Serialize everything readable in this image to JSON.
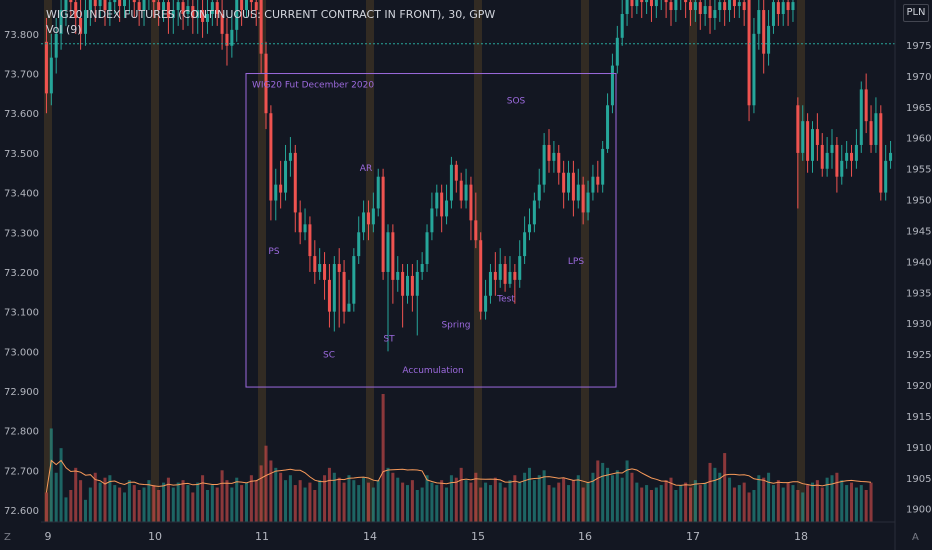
{
  "header": {
    "title": "WIG20 INDEX FUTURES (CONTINUOUS: CURRENT CONTRACT IN FRONT), 30, GPW",
    "volume_label": "Vol (9)"
  },
  "currency": "PLN",
  "corner_left": "Z",
  "corner_right": "A",
  "colors": {
    "background": "#131722",
    "up": "#26a69a",
    "down": "#ef5350",
    "annotation": "#9c6ade",
    "ma_line": "#f89a5a",
    "session_band": "#3d3324",
    "dotted_line": "#26a69a"
  },
  "chart_data": {
    "type": "candlestick",
    "left_axis": {
      "label": "",
      "ticks": [
        "73.800",
        "73.700",
        "73.600",
        "73.500",
        "73.400",
        "73.300",
        "73.200",
        "73.100",
        "73.000",
        "72.900",
        "72.800",
        "72.700",
        "72.600"
      ],
      "range": [
        72.58,
        73.85
      ]
    },
    "right_axis": {
      "label": "",
      "ticks": [
        "1975",
        "1970",
        "1965",
        "1960",
        "1955",
        "1950",
        "1945",
        "1940",
        "1935",
        "1930",
        "1925",
        "1920",
        "1915",
        "1910",
        "1905",
        "1900"
      ],
      "range": [
        1898.5,
        1980
      ]
    },
    "x_ticks": [
      "9",
      "10",
      "11",
      "14",
      "15",
      "16",
      "17",
      "18"
    ],
    "box": {
      "title": "WIG20 Fut December 2020",
      "label": "Accumulation",
      "left_axis_range": [
        72.91,
        73.7
      ]
    },
    "annotations": [
      {
        "text": "PS",
        "price": 73.245
      },
      {
        "text": "SC",
        "price": 72.985
      },
      {
        "text": "AR",
        "price": 73.455
      },
      {
        "text": "ST",
        "price": 73.025
      },
      {
        "text": "Spring",
        "price": 73.06
      },
      {
        "text": "Test",
        "price": 73.125
      },
      {
        "text": "SOS",
        "price": 73.625
      },
      {
        "text": "LPS",
        "price": 73.22
      }
    ],
    "dotted_level": 73.775,
    "candles": [
      [
        73.78,
        73.65,
        73.84,
        73.6
      ],
      [
        73.65,
        73.74,
        73.8,
        73.62
      ],
      [
        73.74,
        73.8,
        73.84,
        73.7
      ],
      [
        73.8,
        73.86,
        73.9,
        73.76
      ],
      [
        73.86,
        73.9,
        73.93,
        73.82
      ],
      [
        73.9,
        73.88,
        73.95,
        73.84
      ],
      [
        73.88,
        73.84,
        73.92,
        73.8
      ],
      [
        73.84,
        73.8,
        73.89,
        73.76
      ],
      [
        73.8,
        73.86,
        73.9,
        73.77
      ],
      [
        73.86,
        73.9,
        73.94,
        73.82
      ],
      [
        73.9,
        73.87,
        73.94,
        73.83
      ],
      [
        73.87,
        73.89,
        73.93,
        73.84
      ],
      [
        73.89,
        73.86,
        73.93,
        73.82
      ],
      [
        73.86,
        73.88,
        73.92,
        73.82
      ],
      [
        73.88,
        73.9,
        73.94,
        73.85
      ],
      [
        73.9,
        73.87,
        73.94,
        73.83
      ],
      [
        73.87,
        73.89,
        73.92,
        73.84
      ],
      [
        73.89,
        73.91,
        73.95,
        73.85
      ],
      [
        73.91,
        73.88,
        73.95,
        73.84
      ],
      [
        73.88,
        73.86,
        73.92,
        73.82
      ],
      [
        73.86,
        73.89,
        73.93,
        73.82
      ],
      [
        73.89,
        73.91,
        73.95,
        73.86
      ],
      [
        73.91,
        73.88,
        73.94,
        73.84
      ],
      [
        73.88,
        73.86,
        73.92,
        73.82
      ],
      [
        73.86,
        73.88,
        73.92,
        73.83
      ],
      [
        73.88,
        73.84,
        73.92,
        73.8
      ],
      [
        73.84,
        73.86,
        73.9,
        73.8
      ],
      [
        73.86,
        73.88,
        73.92,
        73.82
      ],
      [
        73.88,
        73.85,
        73.91,
        73.81
      ],
      [
        73.85,
        73.87,
        73.9,
        73.82
      ],
      [
        73.87,
        73.84,
        73.91,
        73.8
      ],
      [
        73.84,
        73.86,
        73.89,
        73.8
      ],
      [
        73.86,
        73.83,
        73.9,
        73.79
      ],
      [
        73.83,
        73.85,
        73.89,
        73.8
      ],
      [
        73.85,
        73.88,
        73.91,
        73.82
      ],
      [
        73.88,
        73.85,
        73.92,
        73.82
      ],
      [
        73.85,
        73.8,
        73.89,
        73.76
      ],
      [
        73.8,
        73.77,
        73.84,
        73.72
      ],
      [
        73.77,
        73.81,
        73.86,
        73.74
      ],
      [
        73.81,
        73.9,
        73.94,
        73.78
      ],
      [
        73.9,
        73.86,
        73.94,
        73.82
      ],
      [
        73.86,
        73.92,
        73.95,
        73.84
      ],
      [
        73.92,
        73.88,
        73.96,
        73.84
      ],
      [
        73.88,
        73.86,
        73.92,
        73.82
      ],
      [
        73.9,
        73.75,
        73.93,
        73.7
      ],
      [
        73.75,
        73.6,
        73.78,
        73.56
      ],
      [
        73.6,
        73.38,
        73.62,
        73.33
      ],
      [
        73.38,
        73.42,
        73.46,
        73.33
      ],
      [
        73.42,
        73.4,
        73.48,
        73.36
      ],
      [
        73.4,
        73.48,
        73.52,
        73.38
      ],
      [
        73.48,
        73.5,
        73.54,
        73.44
      ],
      [
        73.5,
        73.35,
        73.52,
        73.3
      ],
      [
        73.35,
        73.3,
        73.38,
        73.27
      ],
      [
        73.3,
        73.32,
        73.36,
        73.28
      ],
      [
        73.32,
        73.24,
        73.34,
        73.2
      ],
      [
        73.24,
        73.2,
        73.28,
        73.17
      ],
      [
        73.2,
        73.22,
        73.26,
        73.18
      ],
      [
        73.22,
        73.18,
        73.25,
        73.13
      ],
      [
        73.18,
        73.1,
        73.22,
        73.06
      ],
      [
        73.1,
        73.22,
        73.24,
        73.05
      ],
      [
        73.22,
        73.2,
        73.26,
        73.06
      ],
      [
        73.2,
        73.1,
        73.23,
        73.07
      ],
      [
        73.1,
        73.12,
        73.18,
        73.1
      ],
      [
        73.12,
        73.24,
        73.26,
        73.1
      ],
      [
        73.24,
        73.3,
        73.34,
        73.22
      ],
      [
        73.3,
        73.35,
        73.38,
        73.28
      ],
      [
        73.35,
        73.32,
        73.38,
        73.28
      ],
      [
        73.32,
        73.36,
        73.4,
        73.3
      ],
      [
        73.36,
        73.44,
        73.46,
        73.34
      ],
      [
        73.44,
        73.2,
        73.46,
        73.18
      ],
      [
        73.2,
        73.3,
        73.32,
        73.0
      ],
      [
        73.3,
        73.18,
        73.32,
        73.12
      ],
      [
        73.18,
        73.2,
        73.24,
        73.15
      ],
      [
        73.2,
        73.14,
        73.22,
        73.06
      ],
      [
        73.14,
        73.19,
        73.22,
        73.12
      ],
      [
        73.19,
        73.14,
        73.22,
        73.1
      ],
      [
        73.14,
        73.2,
        73.23,
        73.04
      ],
      [
        73.2,
        73.22,
        73.25,
        73.18
      ],
      [
        73.22,
        73.3,
        73.32,
        73.2
      ],
      [
        73.3,
        73.36,
        73.4,
        73.28
      ],
      [
        73.36,
        73.4,
        73.42,
        73.34
      ],
      [
        73.4,
        73.34,
        73.42,
        73.3
      ],
      [
        73.34,
        73.38,
        73.42,
        73.32
      ],
      [
        73.38,
        73.47,
        73.49,
        73.36
      ],
      [
        73.47,
        73.43,
        73.48,
        73.4
      ],
      [
        73.43,
        73.38,
        73.45,
        73.36
      ],
      [
        73.38,
        73.42,
        73.46,
        73.36
      ],
      [
        73.42,
        73.33,
        73.44,
        73.28
      ],
      [
        73.33,
        73.28,
        73.4,
        73.26
      ],
      [
        73.28,
        73.1,
        73.3,
        73.08
      ],
      [
        73.1,
        73.14,
        73.18,
        73.08
      ],
      [
        73.14,
        73.2,
        73.22,
        73.12
      ],
      [
        73.2,
        73.18,
        73.25,
        73.14
      ],
      [
        73.18,
        73.22,
        73.26,
        73.16
      ],
      [
        73.22,
        73.17,
        73.24,
        73.15
      ],
      [
        73.17,
        73.2,
        73.24,
        73.16
      ],
      [
        73.2,
        73.18,
        73.22,
        73.12
      ],
      [
        73.18,
        73.24,
        73.28,
        73.16
      ],
      [
        73.24,
        73.3,
        73.34,
        73.22
      ],
      [
        73.3,
        73.32,
        73.36,
        73.28
      ],
      [
        73.32,
        73.38,
        73.4,
        73.3
      ],
      [
        73.38,
        73.42,
        73.46,
        73.36
      ],
      [
        73.42,
        73.52,
        73.55,
        73.4
      ],
      [
        73.52,
        73.48,
        73.56,
        73.45
      ],
      [
        73.48,
        73.5,
        73.53,
        73.45
      ],
      [
        73.5,
        73.45,
        73.52,
        73.42
      ],
      [
        73.45,
        73.4,
        73.48,
        73.36
      ],
      [
        73.4,
        73.45,
        73.48,
        73.38
      ],
      [
        73.45,
        73.38,
        73.48,
        73.34
      ],
      [
        73.38,
        73.42,
        73.46,
        73.36
      ],
      [
        73.42,
        73.35,
        73.44,
        73.32
      ],
      [
        73.35,
        73.4,
        73.43,
        73.33
      ],
      [
        73.4,
        73.44,
        73.47,
        73.38
      ],
      [
        73.44,
        73.42,
        73.48,
        73.4
      ],
      [
        73.42,
        73.51,
        73.53,
        73.4
      ],
      [
        73.51,
        73.62,
        73.65,
        73.5
      ],
      [
        73.62,
        73.72,
        73.75,
        73.6
      ],
      [
        73.72,
        73.79,
        73.82,
        73.7
      ],
      [
        73.79,
        73.85,
        73.89,
        73.77
      ],
      [
        73.85,
        73.9,
        73.93,
        73.82
      ],
      [
        73.9,
        73.87,
        73.93,
        73.84
      ],
      [
        73.87,
        73.9,
        73.94,
        73.85
      ],
      [
        73.9,
        73.88,
        73.93,
        73.84
      ],
      [
        73.88,
        73.9,
        73.94,
        73.85
      ],
      [
        73.9,
        73.87,
        73.93,
        73.83
      ],
      [
        73.87,
        73.89,
        73.92,
        73.84
      ],
      [
        73.89,
        73.91,
        73.95,
        73.86
      ],
      [
        73.91,
        73.88,
        73.94,
        73.84
      ],
      [
        73.88,
        73.86,
        73.92,
        73.82
      ],
      [
        73.86,
        73.89,
        73.93,
        73.83
      ],
      [
        73.89,
        73.91,
        73.94,
        73.86
      ],
      [
        73.91,
        73.88,
        73.94,
        73.84
      ],
      [
        73.88,
        73.86,
        73.92,
        73.82
      ],
      [
        73.86,
        73.88,
        73.92,
        73.83
      ],
      [
        73.88,
        73.85,
        73.91,
        73.81
      ],
      [
        73.85,
        73.87,
        73.9,
        73.82
      ],
      [
        73.87,
        73.84,
        73.91,
        73.8
      ],
      [
        73.84,
        73.86,
        73.89,
        73.81
      ],
      [
        73.86,
        73.88,
        73.92,
        73.83
      ],
      [
        73.88,
        73.86,
        73.92,
        73.82
      ],
      [
        73.86,
        73.89,
        73.93,
        73.83
      ],
      [
        73.89,
        73.87,
        73.93,
        73.84
      ],
      [
        73.87,
        73.88,
        73.92,
        73.84
      ],
      [
        73.88,
        73.86,
        73.92,
        73.82
      ],
      [
        73.9,
        73.62,
        73.92,
        73.58
      ],
      [
        73.62,
        73.8,
        73.84,
        73.6
      ],
      [
        73.8,
        73.86,
        73.9,
        73.76
      ],
      [
        73.86,
        73.75,
        73.9,
        73.7
      ],
      [
        73.75,
        73.82,
        73.86,
        73.72
      ],
      [
        73.82,
        73.88,
        73.92,
        73.8
      ],
      [
        73.88,
        73.85,
        73.93,
        73.82
      ],
      [
        73.85,
        73.88,
        73.92,
        73.82
      ],
      [
        73.88,
        73.86,
        73.92,
        73.82
      ],
      [
        73.86,
        73.88,
        73.92,
        73.83
      ],
      [
        73.62,
        73.5,
        73.64,
        73.36
      ],
      [
        73.5,
        73.58,
        73.62,
        73.48
      ],
      [
        73.58,
        73.48,
        73.6,
        73.45
      ],
      [
        73.48,
        73.56,
        73.58,
        73.45
      ],
      [
        73.56,
        73.52,
        73.6,
        73.48
      ],
      [
        73.52,
        73.46,
        73.55,
        73.44
      ],
      [
        73.46,
        73.5,
        73.54,
        73.44
      ],
      [
        73.5,
        73.52,
        73.56,
        73.46
      ],
      [
        73.52,
        73.44,
        73.54,
        73.4
      ],
      [
        73.44,
        73.48,
        73.52,
        73.42
      ],
      [
        73.48,
        73.5,
        73.53,
        73.46
      ],
      [
        73.5,
        73.48,
        73.52,
        73.44
      ],
      [
        73.48,
        73.52,
        73.56,
        73.46
      ],
      [
        73.52,
        73.66,
        73.68,
        73.5
      ],
      [
        73.66,
        73.58,
        73.7,
        73.55
      ],
      [
        73.58,
        73.52,
        73.62,
        73.5
      ],
      [
        73.52,
        73.6,
        73.64,
        73.5
      ],
      [
        73.6,
        73.4,
        73.62,
        73.38
      ],
      [
        73.4,
        73.48,
        73.52,
        73.38
      ],
      [
        73.48,
        73.5,
        73.53,
        73.46
      ]
    ],
    "volume": [
      12,
      38,
      20,
      30,
      10,
      13,
      22,
      17,
      9,
      14,
      20,
      16,
      18,
      19,
      15,
      14,
      12,
      17,
      15,
      13,
      14,
      17,
      15,
      13,
      16,
      18,
      14,
      16,
      17,
      15,
      12,
      16,
      19,
      13,
      15,
      14,
      21,
      17,
      14,
      18,
      15,
      16,
      19,
      17,
      23,
      31,
      25,
      22,
      20,
      17,
      19,
      15,
      17,
      14,
      16,
      13,
      17,
      19,
      22,
      20,
      18,
      16,
      19,
      17,
      15,
      18,
      16,
      14,
      17,
      52,
      22,
      20,
      18,
      16,
      15,
      17,
      13,
      14,
      19,
      16,
      15,
      17,
      14,
      19,
      18,
      22,
      17,
      16,
      20,
      14,
      16,
      15,
      18,
      16,
      14,
      17,
      19,
      16,
      20,
      22,
      17,
      19,
      21,
      15,
      14,
      16,
      18,
      15,
      17,
      19,
      14,
      16,
      20,
      25,
      24,
      22,
      19,
      21,
      18,
      25,
      20,
      16,
      14,
      15,
      13,
      14,
      15,
      17,
      18,
      13,
      15,
      16,
      14,
      17,
      15,
      16,
      24,
      22,
      20,
      28,
      18,
      14,
      15,
      16,
      12,
      13,
      19,
      18,
      20,
      15,
      17,
      14,
      16,
      15,
      13,
      12,
      15,
      16,
      17,
      14,
      18,
      19,
      20,
      17,
      15,
      16,
      14,
      15,
      13,
      16
    ]
  }
}
